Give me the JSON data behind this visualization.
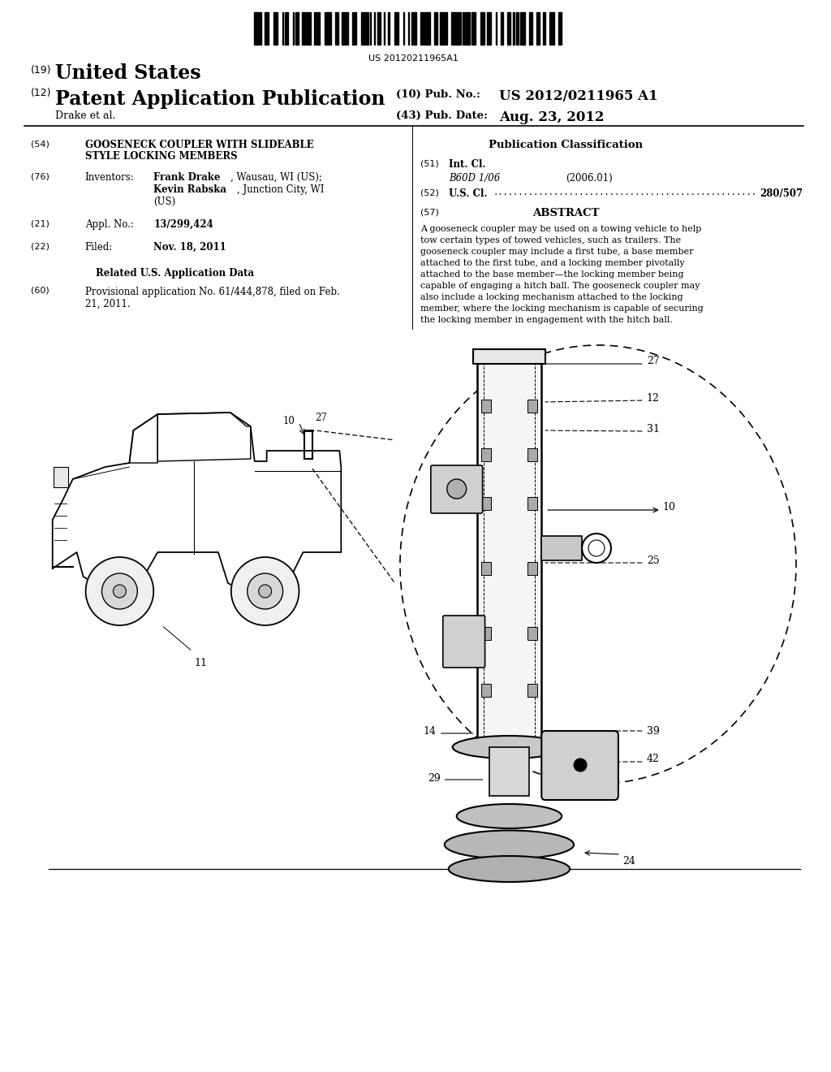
{
  "background_color": "#ffffff",
  "page_width": 10.24,
  "page_height": 13.2,
  "barcode_text": "US 20120211965A1",
  "header": {
    "country_label": "(19)",
    "country": "United States",
    "type_label": "(12)",
    "type": "Patent Application Publication",
    "pub_no_label": "(10) Pub. No.:",
    "pub_no": "US 2012/0211965 A1",
    "author": "Drake et al.",
    "pub_date_label": "(43) Pub. Date:",
    "pub_date": "Aug. 23, 2012"
  },
  "left_col": {
    "title_num": "(54)",
    "title_line1": "GOOSENECK COUPLER WITH SLIDEABLE",
    "title_line2": "STYLE LOCKING MEMBERS",
    "inventors_num": "(76)",
    "inventors_label": "Inventors:",
    "inventor1_bold": "Frank Drake",
    "inventor1_rest": ", Wausau, WI (US);",
    "inventor2_bold": "Kevin Rabska",
    "inventor2_rest": ", Junction City, WI",
    "inventor2_line2": "(US)",
    "appl_num": "(21)",
    "appl_label": "Appl. No.:",
    "appl_val": "13/299,424",
    "filed_num": "(22)",
    "filed_label": "Filed:",
    "filed_val": "Nov. 18, 2011",
    "related_header": "Related U.S. Application Data",
    "provisional_num": "(60)",
    "provisional_line1": "Provisional application No. 61/444,878, filed on Feb.",
    "provisional_line2": "21, 2011."
  },
  "right_col": {
    "pub_class_header": "Publication Classification",
    "intcl_num": "(51)",
    "intcl_label": "Int. Cl.",
    "intcl_val": "B60D 1/06",
    "intcl_year": "(2006.01)",
    "uscl_num": "(52)",
    "uscl_label": "U.S. Cl.",
    "uscl_val": "280/507",
    "abstract_num": "(57)",
    "abstract_header": "ABSTRACT",
    "abstract_line1": "A gooseneck coupler may be used on a towing vehicle to help",
    "abstract_line2": "tow certain types of towed vehicles, such as trailers. The",
    "abstract_line3": "gooseneck coupler may include a first tube, a base member",
    "abstract_line4": "attached to the first tube, and a locking member pivotally",
    "abstract_line5": "attached to the base member—the locking member being",
    "abstract_line6": "capable of engaging a hitch ball. The gooseneck coupler may",
    "abstract_line7": "also include a locking mechanism attached to the locking",
    "abstract_line8": "member, where the locking mechanism is capable of securing",
    "abstract_line9": "the locking member in engagement with the hitch ball."
  },
  "text_color": "#000000"
}
